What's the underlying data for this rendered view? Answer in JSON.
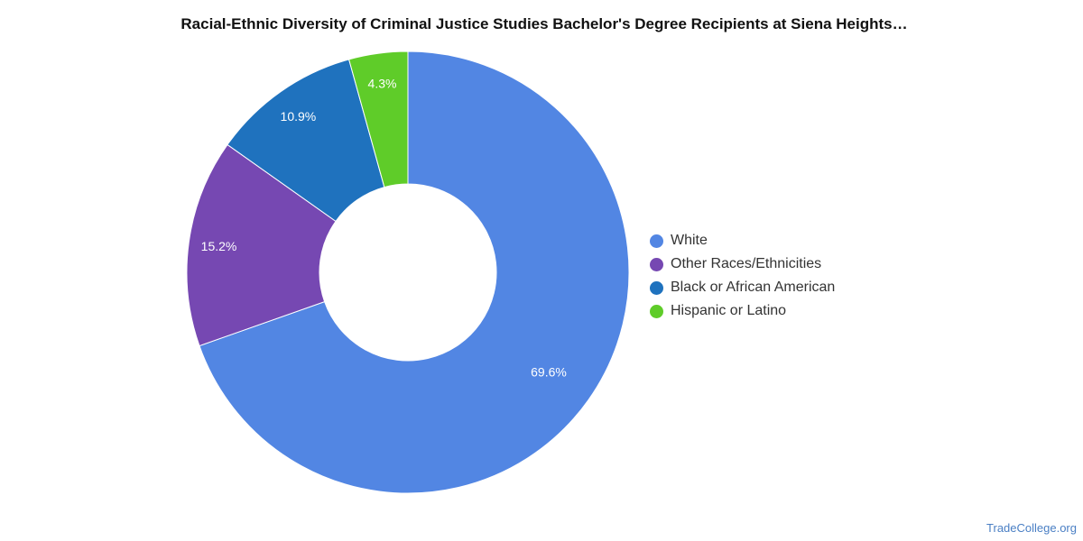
{
  "chart_data": {
    "type": "pie",
    "title": "Racial-Ethnic Diversity of Criminal Justice Studies Bachelor's Degree Recipients at Siena Heights…",
    "donut": true,
    "legend_position": "right",
    "slices": [
      {
        "label": "White",
        "value": 69.6,
        "display": "69.6%",
        "color": "#5286e3"
      },
      {
        "label": "Other Races/Ethnicities",
        "value": 15.2,
        "display": "15.2%",
        "color": "#7648b2"
      },
      {
        "label": "Black or African American",
        "value": 10.9,
        "display": "10.9%",
        "color": "#1f72be"
      },
      {
        "label": "Hispanic or Latino",
        "value": 4.3,
        "display": "4.3%",
        "color": "#5fcc29"
      }
    ]
  },
  "watermark": "TradeCollege.org"
}
